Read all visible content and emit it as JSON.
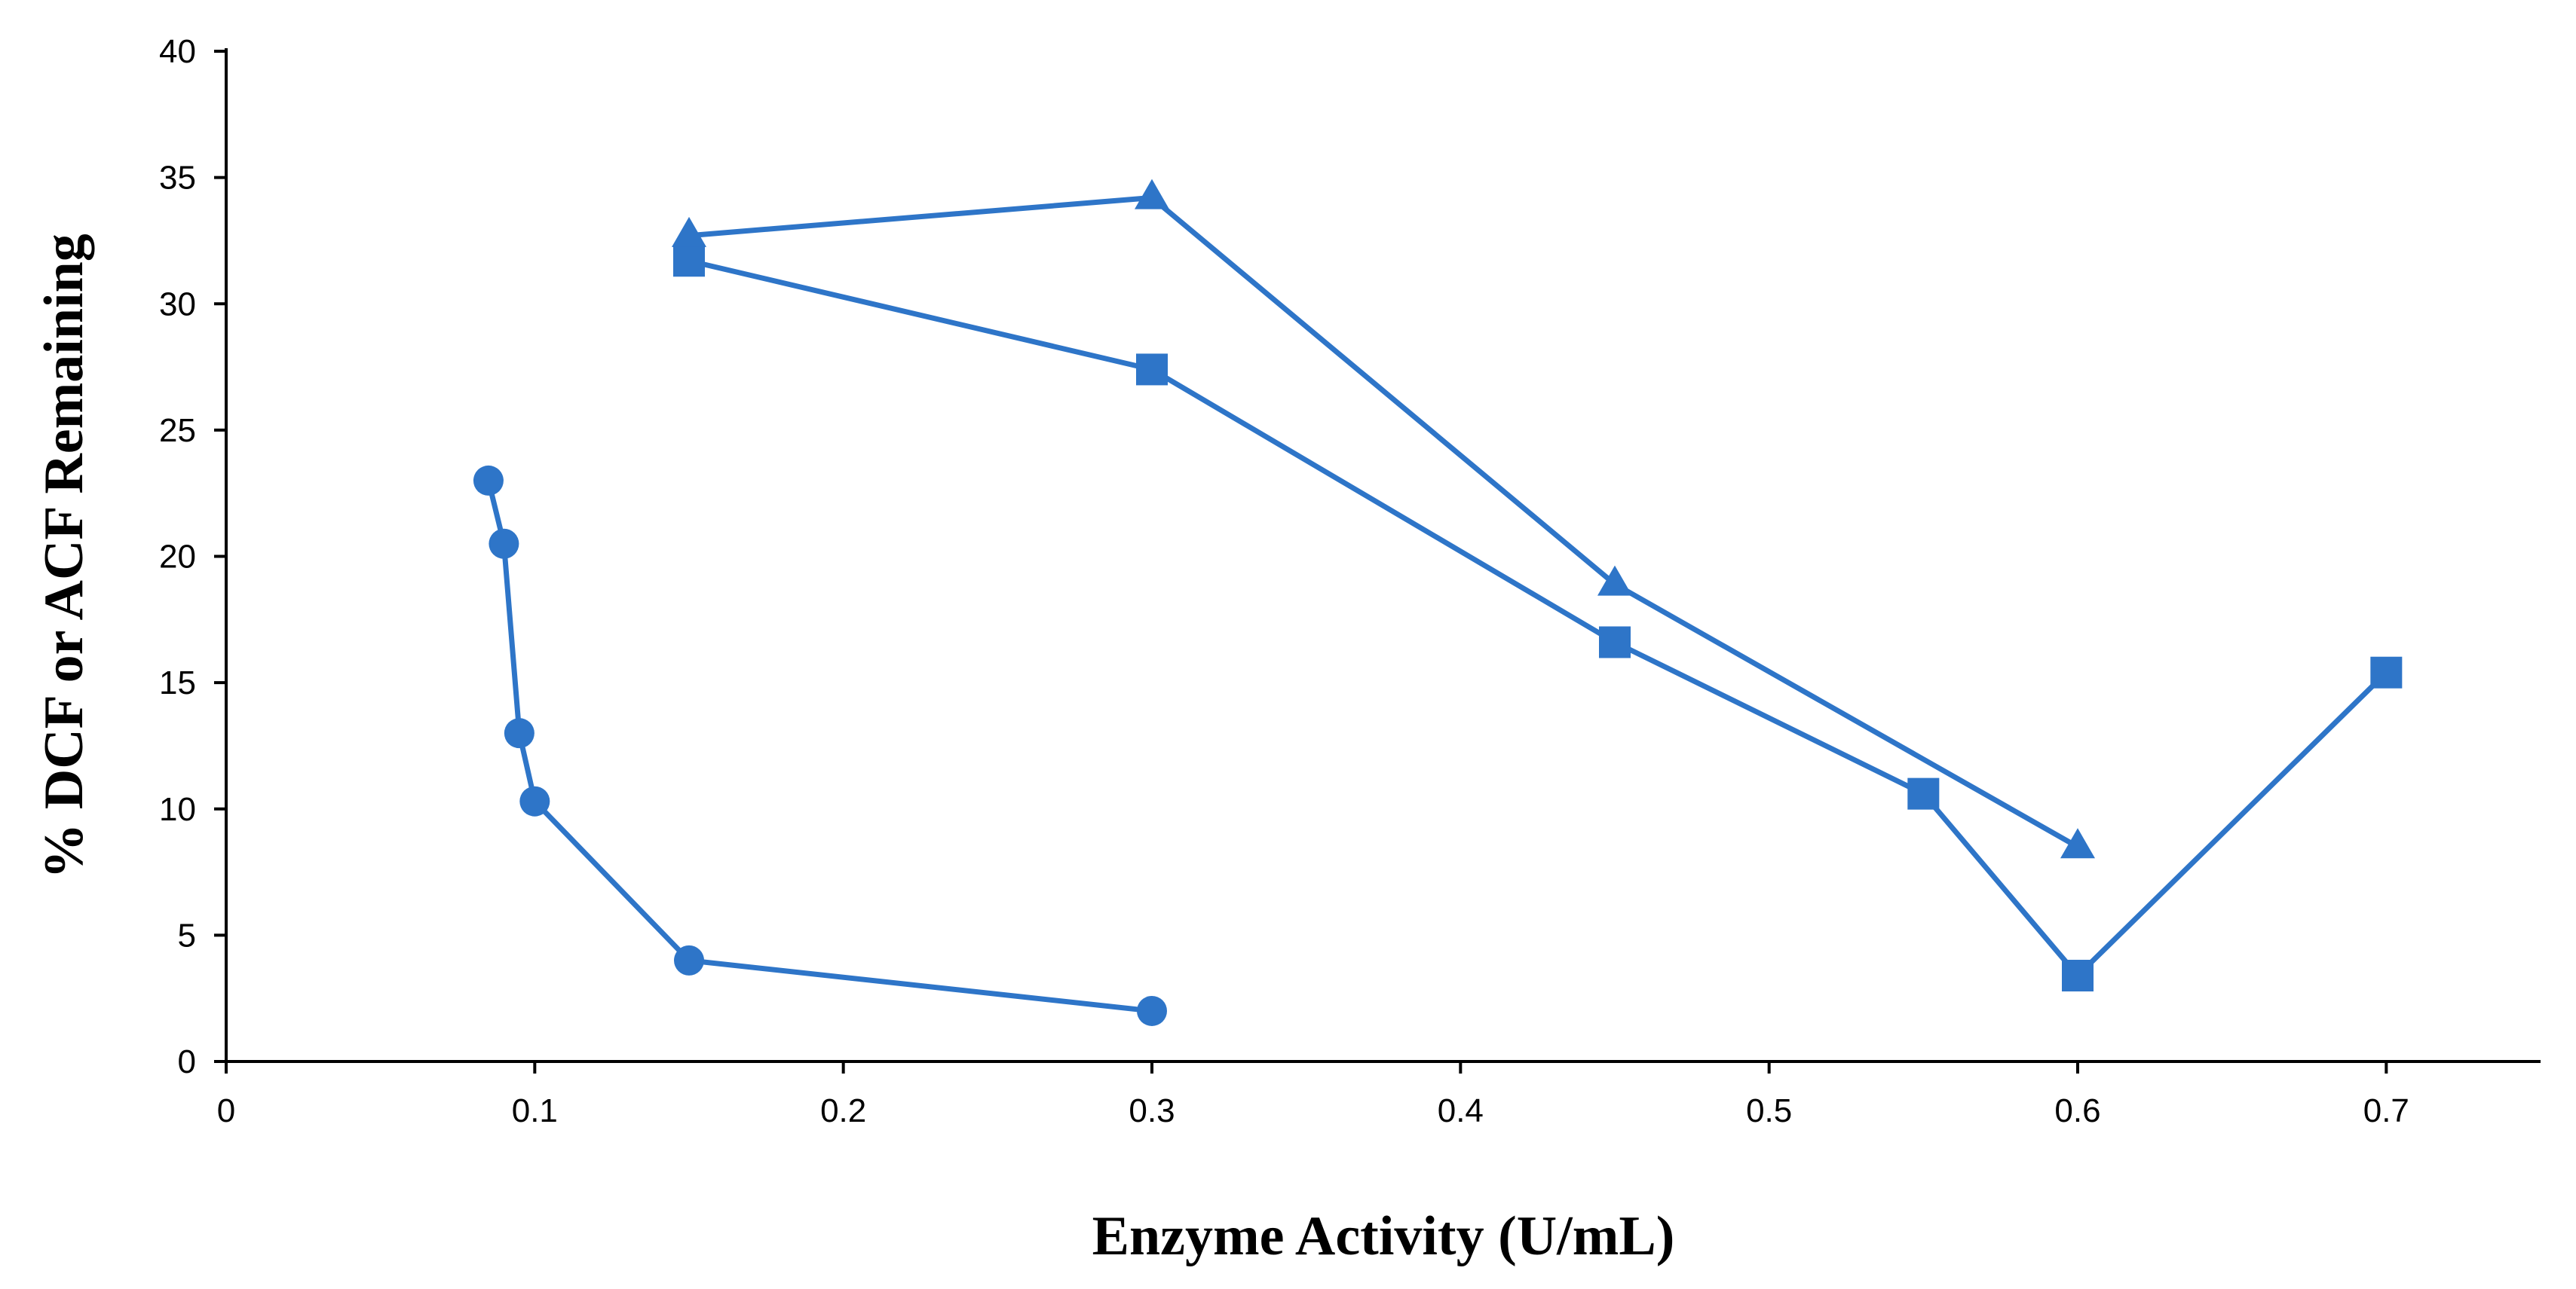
{
  "chart_data": {
    "type": "line",
    "xlabel": "Enzyme Activity (U/mL)",
    "ylabel": "% DCF or ACF Remaining",
    "xlim": [
      0,
      0.75
    ],
    "ylim": [
      0,
      40
    ],
    "xticks": [
      0,
      0.1,
      0.2,
      0.3,
      0.4,
      0.5,
      0.6,
      0.7
    ],
    "xtick_labels": [
      "0",
      "0.1",
      "0.2",
      "0.3",
      "0.4",
      "0.5",
      "0.6",
      "0.7"
    ],
    "yticks": [
      0,
      5,
      10,
      15,
      20,
      25,
      30,
      35,
      40
    ],
    "ytick_labels": [
      "0",
      "5",
      "10",
      "15",
      "20",
      "25",
      "30",
      "35",
      "40"
    ],
    "grid": false,
    "legend": "none",
    "color": "#2E75C8",
    "series": [
      {
        "marker": "circle",
        "points": [
          {
            "x": 0.085,
            "y": 23.0
          },
          {
            "x": 0.09,
            "y": 20.5
          },
          {
            "x": 0.095,
            "y": 13.0
          },
          {
            "x": 0.1,
            "y": 10.3
          },
          {
            "x": 0.15,
            "y": 4.0
          },
          {
            "x": 0.3,
            "y": 2.0
          }
        ]
      },
      {
        "marker": "square",
        "points": [
          {
            "x": 0.15,
            "y": 31.7
          },
          {
            "x": 0.3,
            "y": 27.4
          },
          {
            "x": 0.45,
            "y": 16.6
          },
          {
            "x": 0.55,
            "y": 10.6
          },
          {
            "x": 0.6,
            "y": 3.4
          },
          {
            "x": 0.7,
            "y": 15.4
          }
        ]
      },
      {
        "marker": "triangle",
        "points": [
          {
            "x": 0.15,
            "y": 32.7
          },
          {
            "x": 0.3,
            "y": 34.2
          },
          {
            "x": 0.45,
            "y": 18.9
          },
          {
            "x": 0.6,
            "y": 8.5
          }
        ]
      }
    ]
  }
}
